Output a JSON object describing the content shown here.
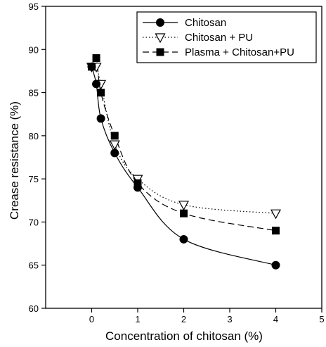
{
  "chart_data": {
    "type": "line",
    "xlabel": "Concentration of chitosan (%)",
    "ylabel": "Crease resistance (%)",
    "xlim": [
      -1,
      5
    ],
    "ylim": [
      60,
      95
    ],
    "xticks": [
      0,
      1,
      2,
      3,
      4,
      5
    ],
    "yticks": [
      60,
      65,
      70,
      75,
      80,
      85,
      90,
      95
    ],
    "grid": false,
    "legend_position": "top-right",
    "series": [
      {
        "name": "Chitosan",
        "marker": "circle-filled",
        "line": "solid",
        "x": [
          0,
          0.1,
          0.2,
          0.5,
          1,
          2,
          4
        ],
        "y": [
          88,
          86,
          82,
          78,
          74,
          68,
          65
        ]
      },
      {
        "name": "Chitosan + PU",
        "marker": "triangle-down-open",
        "line": "dotted",
        "x": [
          0,
          0.1,
          0.2,
          0.5,
          1,
          2,
          4
        ],
        "y": [
          88,
          88,
          86,
          79,
          75,
          72,
          71
        ]
      },
      {
        "name": "Plasma + Chitosan+PU",
        "marker": "square-filled",
        "line": "dashed",
        "x": [
          0,
          0.1,
          0.2,
          0.5,
          1,
          2,
          4
        ],
        "y": [
          88,
          89,
          85,
          80,
          74.5,
          71,
          69
        ]
      }
    ]
  }
}
